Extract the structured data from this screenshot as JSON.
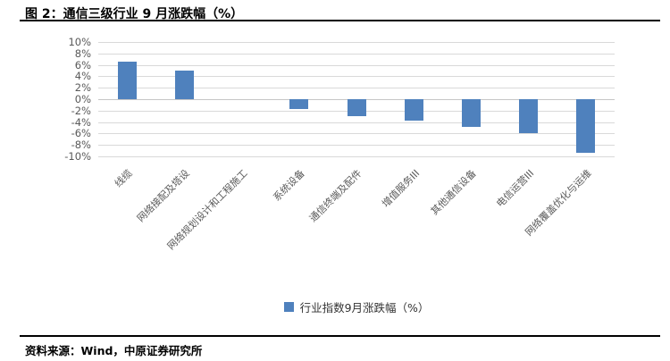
{
  "header": {
    "title": "图 2：通信三级行业 9 月涨跌幅（%）"
  },
  "legend": {
    "label": "行业指数9月涨跌幅（%）",
    "marker_color": "#4f81bd"
  },
  "footer": {
    "source": "资料来源：Wind，中原证券研究所"
  },
  "chart_data": {
    "type": "bar",
    "title": "通信三级行业9月涨跌幅（%）",
    "categories": [
      "线缆",
      "网络接配及塔设",
      "网络规划设计和工程施工",
      "系统设备",
      "通信终端及配件",
      "增值服务III",
      "其他通信设备",
      "电信运营III",
      "网络覆盖优化与运维"
    ],
    "series": [
      {
        "name": "行业指数9月涨跌幅（%）",
        "values": [
          6.5,
          5.0,
          0.0,
          -1.7,
          -3.0,
          -3.7,
          -4.9,
          -5.9,
          -9.3
        ]
      }
    ],
    "xlabel": "",
    "ylabel": "",
    "ylim": [
      -10,
      10
    ],
    "ytick_step": 2,
    "ytick_suffix": "%",
    "grid": true,
    "legend_position": "bottom",
    "bar_color": "#4f81bd",
    "gridline_color": "#d9d9d9",
    "axis_text_color": "#595959"
  }
}
